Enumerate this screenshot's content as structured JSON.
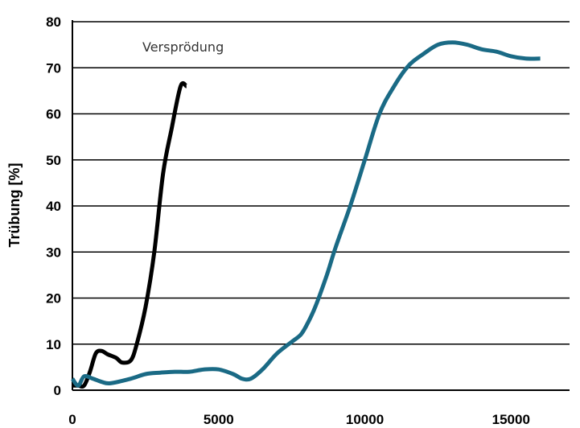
{
  "chart_data": {
    "type": "line",
    "title": "",
    "xlabel": "",
    "ylabel": "Trübung [%]",
    "xlim": [
      0,
      17000
    ],
    "ylim": [
      0,
      80
    ],
    "x_ticks": [
      0,
      5000,
      10000,
      15000
    ],
    "x_tick_labels": [
      "0",
      "5000",
      "10000",
      "15000"
    ],
    "y_ticks": [
      0,
      10,
      20,
      30,
      40,
      50,
      60,
      70,
      80
    ],
    "y_tick_labels": [
      "0",
      "10",
      "20",
      "30",
      "40",
      "50",
      "60",
      "70",
      "80"
    ],
    "grid": "horizontal",
    "annotations": [
      {
        "text": "Versprödung",
        "x": 4500,
        "y": 75
      }
    ],
    "series": [
      {
        "color": "#000000",
        "x": [
          0,
          200,
          400,
          600,
          800,
          1000,
          1200,
          1500,
          1700,
          2000,
          2200,
          2500,
          2800,
          3100,
          3400,
          3700,
          3900
        ],
        "y": [
          1,
          1,
          1,
          4,
          8,
          8.5,
          7.8,
          7,
          6,
          6.5,
          10,
          18,
          30,
          47,
          57,
          66,
          66
        ]
      },
      {
        "color": "#1a6a85",
        "x": [
          0,
          200,
          400,
          700,
          1000,
          1300,
          2000,
          2500,
          3000,
          3500,
          4000,
          4500,
          5000,
          5500,
          5800,
          6100,
          6500,
          7000,
          7500,
          7800,
          8000,
          8300,
          8700,
          9000,
          9500,
          10000,
          10500,
          11000,
          11500,
          12000,
          12500,
          13000,
          13500,
          14000,
          14500,
          15000,
          15500,
          16000
        ],
        "y": [
          2.5,
          1,
          3,
          2.5,
          1.8,
          1.5,
          2.5,
          3.5,
          3.8,
          4,
          4,
          4.5,
          4.5,
          3.5,
          2.5,
          2.5,
          4.5,
          8,
          10.5,
          12,
          14,
          18,
          25,
          31,
          40,
          50,
          60,
          66,
          70.5,
          73,
          75,
          75.5,
          75,
          74,
          73.5,
          72.5,
          72,
          72
        ]
      }
    ]
  }
}
